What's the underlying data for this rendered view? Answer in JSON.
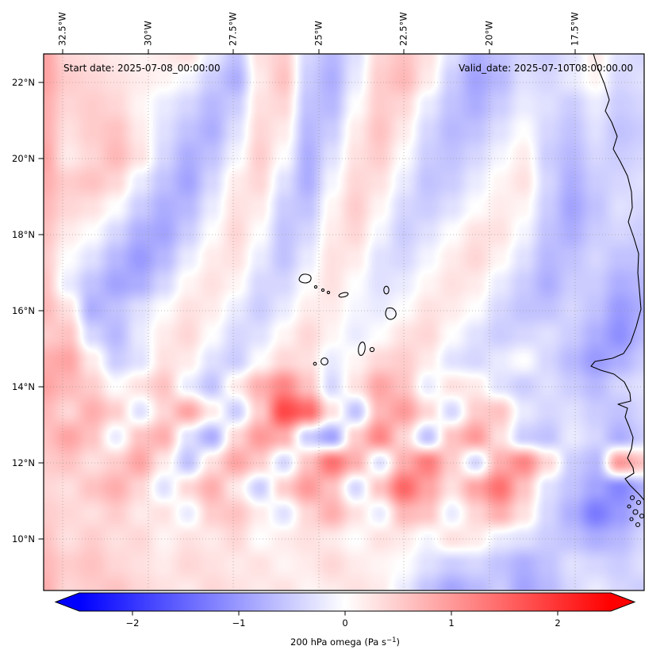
{
  "chart_data": {
    "type": "heatmap",
    "annotations": {
      "start_date": "Start date: 2025-07-08_00:00:00",
      "valid_date": "Valid_date: 2025-07-10T08:00:00.00"
    },
    "axes": {
      "lon_tick_labels": [
        "32.5°W",
        "30°W",
        "27.5°W",
        "25°W",
        "22.5°W",
        "20°W",
        "17.5°W"
      ],
      "lat_tick_labels": [
        "22°N",
        "20°N",
        "18°N",
        "16°N",
        "14°N",
        "12°N",
        "10°N"
      ],
      "lon_ticks_deg": [
        -32.5,
        -30,
        -27.5,
        -25,
        -22.5,
        -20,
        -17.5
      ],
      "lat_ticks_deg": [
        22,
        20,
        18,
        16,
        14,
        12,
        10
      ],
      "lon_range_deg": [
        -33.1,
        -15.5
      ],
      "lat_range_deg": [
        8.6,
        22.75
      ],
      "grid_on": true
    },
    "colorbar": {
      "label_full": "200 hPa omega (Pa s⁻¹)",
      "label_prefix": "200 hPa omega (Pa s",
      "label_sup": "−1",
      "label_suffix": ")",
      "tick_labels": [
        "−2",
        "−1",
        "0",
        "1",
        "2"
      ],
      "tick_values": [
        -2,
        -1,
        0,
        1,
        2
      ],
      "vmin": -2.5,
      "vmax": 2.5,
      "cmap": "bwr",
      "extend": "both",
      "orientation": "horizontal",
      "color_under": "#0000ff",
      "color_zero": "#ffffff",
      "color_over": "#ff0000"
    },
    "field": {
      "name": "omega",
      "level": "200 hPa",
      "units": "Pa s⁻¹",
      "grid_rows_lat_desc": 22,
      "grid_cols_lon_asc": 26,
      "grid": [
        [
          0.9,
          0.4,
          0.3,
          0.2,
          0.1,
          0.2,
          0.3,
          -0.2,
          -0.6,
          0.3,
          0.5,
          -0.4,
          -0.7,
          -0.3,
          0.4,
          0.6,
          0.3,
          -0.3,
          -0.8,
          -0.6,
          -0.4,
          -0.5,
          -0.3,
          0.2,
          -0.3,
          -0.4
        ],
        [
          0.9,
          0.5,
          0.4,
          0.3,
          0.2,
          0.1,
          -0.1,
          -0.5,
          -0.8,
          0.2,
          0.6,
          -0.5,
          -0.8,
          -0.2,
          0.5,
          0.7,
          0.2,
          -0.5,
          -0.9,
          -0.7,
          -0.3,
          -0.4,
          -0.2,
          0.1,
          -0.4,
          -0.3
        ],
        [
          0.8,
          0.4,
          0.5,
          0.4,
          0.1,
          -0.2,
          -0.4,
          -0.7,
          -0.5,
          0.3,
          0.4,
          -0.6,
          -0.7,
          0.0,
          0.5,
          0.4,
          -0.2,
          -0.6,
          -0.8,
          -0.5,
          -0.2,
          -0.3,
          -0.5,
          -0.2,
          -0.5,
          -0.4
        ],
        [
          0.8,
          0.3,
          0.5,
          0.6,
          0.2,
          -0.3,
          -0.6,
          -0.8,
          -0.3,
          0.4,
          0.2,
          -0.7,
          -0.5,
          0.2,
          0.6,
          0.2,
          -0.4,
          -0.7,
          -0.6,
          -0.3,
          0.0,
          -0.4,
          -0.6,
          -0.3,
          -0.6,
          -0.5
        ],
        [
          0.9,
          0.2,
          0.4,
          0.7,
          0.3,
          -0.4,
          -0.8,
          -0.6,
          -0.1,
          0.5,
          0.0,
          -0.8,
          -0.3,
          0.3,
          0.5,
          0.0,
          -0.5,
          -0.6,
          -0.4,
          -0.1,
          0.2,
          -0.5,
          -0.7,
          -0.4,
          -0.5,
          -0.4
        ],
        [
          0.8,
          0.5,
          0.6,
          0.4,
          -0.2,
          -0.6,
          -0.9,
          -0.4,
          0.2,
          0.4,
          -0.3,
          -0.8,
          -0.1,
          0.4,
          0.3,
          -0.2,
          -0.6,
          -0.5,
          -0.2,
          0.1,
          0.3,
          -0.4,
          -0.8,
          -0.5,
          -0.4,
          -0.3
        ],
        [
          0.7,
          0.4,
          0.3,
          0.0,
          -0.5,
          -0.8,
          -0.7,
          -0.2,
          0.3,
          0.2,
          -0.5,
          -0.6,
          0.1,
          0.5,
          0.1,
          -0.4,
          -0.5,
          -0.3,
          0.0,
          0.2,
          0.1,
          -0.5,
          -0.9,
          -0.6,
          -0.3,
          -0.4
        ],
        [
          0.6,
          0.2,
          0.0,
          -0.4,
          -0.8,
          -0.9,
          -0.5,
          0.0,
          0.4,
          0.0,
          -0.6,
          -0.4,
          0.2,
          0.4,
          -0.1,
          -0.5,
          -0.3,
          0.0,
          0.3,
          0.3,
          -0.1,
          -0.6,
          -0.8,
          -0.5,
          -0.4,
          -0.5
        ],
        [
          0.5,
          0.0,
          -0.3,
          -0.7,
          -1.0,
          -0.7,
          -0.2,
          0.2,
          0.3,
          -0.2,
          -0.6,
          -0.2,
          0.3,
          0.2,
          -0.3,
          -0.4,
          -0.1,
          0.2,
          0.4,
          0.1,
          -0.3,
          -0.7,
          -0.6,
          -0.4,
          -0.6,
          -0.6
        ],
        [
          0.6,
          -0.2,
          -0.6,
          -0.9,
          -0.8,
          -0.4,
          0.1,
          0.3,
          0.1,
          -0.4,
          -0.4,
          0.0,
          0.3,
          0.0,
          -0.3,
          -0.2,
          0.1,
          0.3,
          0.2,
          -0.2,
          -0.5,
          -0.8,
          -0.5,
          -0.5,
          -0.8,
          -0.7
        ],
        [
          0.7,
          0.3,
          -0.8,
          -0.6,
          -0.3,
          0.0,
          0.3,
          0.2,
          -0.2,
          -0.5,
          -0.2,
          0.2,
          0.2,
          -0.1,
          -0.2,
          0.0,
          0.3,
          0.2,
          0.0,
          -0.4,
          -0.6,
          -0.6,
          -0.4,
          -0.6,
          -1.0,
          -0.8
        ],
        [
          0.5,
          0.6,
          -0.4,
          -0.7,
          -0.2,
          0.2,
          0.4,
          0.0,
          -0.4,
          -0.3,
          0.1,
          0.4,
          0.1,
          -0.2,
          0.0,
          0.3,
          0.4,
          0.0,
          -0.3,
          -0.5,
          -0.4,
          -0.3,
          -0.5,
          -0.8,
          -1.1,
          -0.7
        ],
        [
          0.8,
          0.9,
          0.2,
          -0.5,
          -0.3,
          0.3,
          0.2,
          -0.3,
          -0.5,
          0.0,
          0.4,
          0.3,
          -0.2,
          0.1,
          0.4,
          0.5,
          0.2,
          -0.3,
          -0.4,
          -0.2,
          0.0,
          -0.4,
          -0.7,
          -1.0,
          -0.8,
          -0.5
        ],
        [
          0.9,
          0.7,
          0.5,
          0.0,
          0.3,
          0.6,
          -0.2,
          -0.6,
          0.2,
          0.8,
          1.2,
          0.6,
          -0.4,
          0.3,
          0.9,
          0.6,
          -0.2,
          0.3,
          0.2,
          -0.3,
          -0.5,
          -0.3,
          -0.5,
          -0.7,
          -0.4,
          -0.3
        ],
        [
          0.7,
          0.4,
          0.8,
          0.5,
          -0.3,
          0.4,
          0.9,
          0.2,
          -0.5,
          0.5,
          1.8,
          1.5,
          0.3,
          -0.6,
          0.7,
          1.0,
          0.4,
          -0.4,
          0.5,
          0.6,
          -0.2,
          -0.4,
          -0.3,
          -0.5,
          -0.6,
          -0.4
        ],
        [
          0.6,
          0.9,
          0.6,
          -0.2,
          0.6,
          0.8,
          -0.3,
          -0.8,
          0.4,
          1.0,
          0.8,
          -0.5,
          -0.9,
          0.5,
          1.2,
          0.4,
          -0.6,
          0.6,
          1.0,
          0.3,
          -0.5,
          -0.6,
          -0.2,
          -0.4,
          -0.8,
          -0.5
        ],
        [
          0.5,
          0.6,
          0.3,
          0.5,
          0.9,
          0.2,
          -0.6,
          0.3,
          0.9,
          0.5,
          -0.4,
          0.6,
          1.4,
          0.8,
          -0.3,
          0.8,
          1.3,
          0.5,
          -0.4,
          0.8,
          1.2,
          0.4,
          -0.5,
          -0.7,
          1.0,
          0.6
        ],
        [
          0.4,
          0.3,
          0.6,
          0.8,
          0.4,
          -0.3,
          0.4,
          0.8,
          0.2,
          -0.5,
          0.5,
          1.0,
          0.6,
          -0.4,
          0.6,
          1.5,
          0.9,
          0.3,
          0.9,
          1.4,
          0.6,
          -0.3,
          -0.6,
          -0.9,
          -1.2,
          -0.8
        ],
        [
          0.5,
          0.4,
          0.3,
          0.5,
          0.2,
          0.3,
          -0.2,
          0.5,
          0.6,
          0.2,
          -0.3,
          0.4,
          0.8,
          0.3,
          -0.2,
          0.7,
          0.6,
          -0.2,
          0.4,
          0.8,
          0.3,
          -0.4,
          -0.8,
          -1.3,
          -1.0,
          -0.6
        ],
        [
          0.6,
          0.3,
          0.5,
          0.3,
          0.4,
          0.1,
          0.3,
          0.2,
          0.4,
          0.0,
          0.2,
          0.3,
          0.2,
          0.0,
          0.3,
          0.2,
          -0.1,
          0.3,
          0.2,
          -0.2,
          -0.3,
          -0.5,
          -0.6,
          -0.8,
          -0.7,
          -0.4
        ],
        [
          0.7,
          0.5,
          0.6,
          0.4,
          0.3,
          0.2,
          0.4,
          0.3,
          0.2,
          0.3,
          0.1,
          0.2,
          0.4,
          0.2,
          0.1,
          0.0,
          -0.3,
          -0.5,
          -0.4,
          -0.6,
          -0.8,
          -0.6,
          -0.3,
          -0.4,
          -0.5,
          -0.3
        ],
        [
          0.8,
          0.4,
          0.5,
          0.6,
          0.4,
          0.3,
          0.2,
          0.4,
          0.3,
          0.2,
          0.3,
          0.1,
          0.2,
          0.3,
          0.2,
          -0.2,
          -0.6,
          -0.9,
          -0.7,
          -0.5,
          -0.9,
          -0.7,
          -0.4,
          -0.2,
          -0.4,
          -0.5
        ]
      ]
    },
    "map_features": [
      "west-africa-coastline",
      "cape-verde-islands",
      "bijagos-islands"
    ]
  }
}
